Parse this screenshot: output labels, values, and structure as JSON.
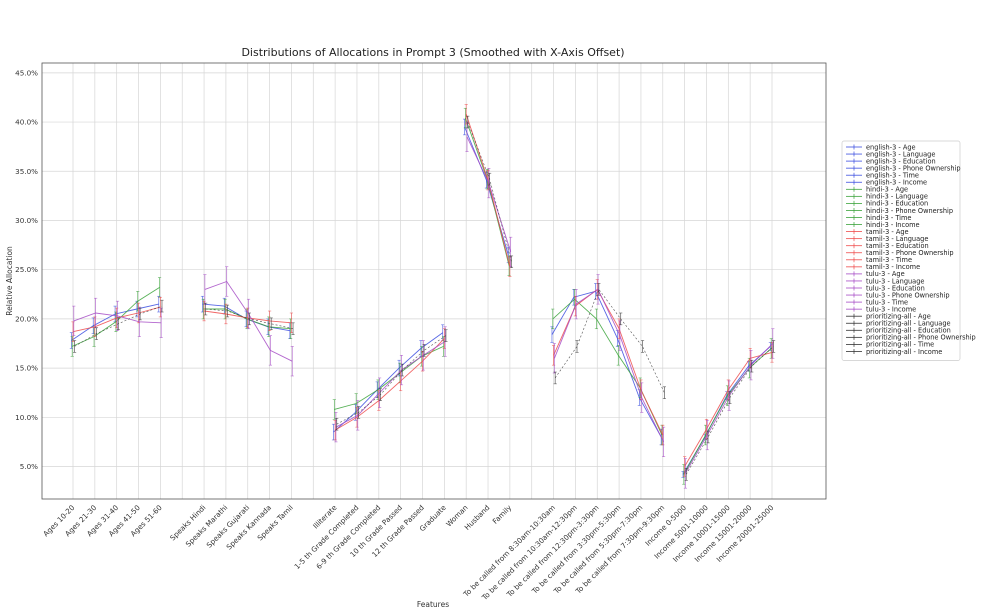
{
  "chart_data": {
    "type": "line",
    "title": "Distributions of Allocations in Prompt 3 (Smoothed with X-Axis Offset)",
    "xlabel": "Features",
    "ylabel": "Relative Allocation",
    "ylim": [
      0.017,
      0.46
    ],
    "y_ticks": [
      "5.0%",
      "10.0%",
      "15.0%",
      "20.0%",
      "25.0%",
      "30.0%",
      "35.0%",
      "40.0%",
      "45.0%"
    ],
    "y_tick_values": [
      0.05,
      0.1,
      0.15,
      0.2,
      0.25,
      0.3,
      0.35,
      0.4,
      0.45
    ],
    "grid": true,
    "legend_position": "right-outside",
    "categories": [
      "Ages 10-20",
      "Ages 21-30",
      "Ages 31-40",
      "Ages 41-50",
      "Ages 51-60",
      "",
      "Speaks Hindi",
      "Speaks Marathi",
      "Speaks Gujarati",
      "Speaks Kannada",
      "Speaks Tamil",
      "",
      "Illiterate",
      "1-5 th Grade Completed",
      "6-9 th Grade Completed",
      "10 th Grade Passed",
      "12 th Grade Passed",
      "Graduate",
      "Woman",
      "Husband",
      "Family",
      "",
      "To be called from 8:30am-10:30am",
      "To be called from 10:30am-12:30pm",
      "To be called from 12:30pm-3:30pm",
      "To be called from 3:30pm-5:30pm",
      "To be called from 5:30pm-7:30pm",
      "To be called from 7:30pm-9:30pm",
      "Income 0-5000",
      "Income 5001-10000",
      "Income 10001-15000",
      "Income 15001-20000",
      "Income 20001-25000"
    ],
    "groups": [
      {
        "name": "Age",
        "categories": [
          "Ages 10-20",
          "Ages 21-30",
          "Ages 31-40",
          "Ages 41-50",
          "Ages 51-60"
        ]
      },
      {
        "name": "Language",
        "categories": [
          "Speaks Hindi",
          "Speaks Marathi",
          "Speaks Gujarati",
          "Speaks Kannada",
          "Speaks Tamil"
        ]
      },
      {
        "name": "Education",
        "categories": [
          "Illiterate",
          "1-5 th Grade Completed",
          "6-9 th Grade Completed",
          "10 th Grade Passed",
          "12 th Grade Passed",
          "Graduate"
        ]
      },
      {
        "name": "Phone Ownership",
        "categories": [
          "Woman",
          "Husband",
          "Family"
        ]
      },
      {
        "name": "Time",
        "categories": [
          "To be called from 8:30am-10:30am",
          "To be called from 10:30am-12:30pm",
          "To be called from 12:30pm-3:30pm",
          "To be called from 3:30pm-5:30pm",
          "To be called from 5:30pm-7:30pm",
          "To be called from 7:30pm-9:30pm"
        ]
      },
      {
        "name": "Income",
        "categories": [
          "Income 0-5000",
          "Income 5001-10000",
          "Income 10001-15000",
          "Income 15001-20000",
          "Income 20001-25000"
        ]
      }
    ],
    "models": [
      {
        "name": "english-3",
        "color": "#3b4ee0",
        "Age": [
          0.178,
          0.193,
          0.205,
          0.21,
          0.215
        ],
        "Language": [
          0.215,
          0.213,
          0.2,
          0.192,
          0.188
        ],
        "Education": [
          0.085,
          0.105,
          0.128,
          0.15,
          0.17,
          0.186
        ],
        "Phone Ownership": [
          0.395,
          0.341,
          0.265
        ],
        "Time": [
          0.184,
          0.222,
          0.228,
          0.18,
          0.12,
          0.08
        ],
        "Income": [
          0.042,
          0.08,
          0.122,
          0.152,
          0.172
        ],
        "Income_errors": [
          0.003,
          0.003,
          0.004,
          0.005,
          0.004
        ],
        "errors": 0.008
      },
      {
        "name": "hindi-3",
        "color": "#3aa33a",
        "Age": [
          0.172,
          0.182,
          0.197,
          0.218,
          0.232
        ],
        "Language": [
          0.21,
          0.21,
          0.2,
          0.192,
          0.19
        ],
        "Education": [
          0.108,
          0.114,
          0.128,
          0.145,
          0.162,
          0.172
        ],
        "Phone Ownership": [
          0.404,
          0.342,
          0.254
        ],
        "Time": [
          0.2,
          0.22,
          0.2,
          0.163,
          0.13,
          0.082
        ],
        "Income": [
          0.042,
          0.082,
          0.122,
          0.15,
          0.17
        ],
        "errors": 0.01
      },
      {
        "name": "tamil-3",
        "color": "#ef4b4b",
        "Age": [
          0.187,
          0.192,
          0.201,
          0.206,
          0.212
        ],
        "Language": [
          0.208,
          0.205,
          0.201,
          0.198,
          0.196
        ],
        "Education": [
          0.087,
          0.1,
          0.117,
          0.137,
          0.157,
          0.18
        ],
        "Phone Ownership": [
          0.408,
          0.341,
          0.253
        ],
        "Time": [
          0.163,
          0.213,
          0.23,
          0.19,
          0.128,
          0.082
        ],
        "Income": [
          0.05,
          0.088,
          0.128,
          0.16,
          0.166
        ],
        "errors": 0.01
      },
      {
        "name": "tulu-3",
        "color": "#a64bc6",
        "Age": [
          0.198,
          0.206,
          0.203,
          0.197,
          0.196
        ],
        "Language": [
          0.23,
          0.238,
          0.205,
          0.168,
          0.157
        ],
        "Education": [
          0.09,
          0.102,
          0.125,
          0.148,
          0.163,
          0.177
        ],
        "Phone Ownership": [
          0.385,
          0.338,
          0.268
        ],
        "Time": [
          0.16,
          0.215,
          0.23,
          0.183,
          0.12,
          0.075
        ],
        "Income": [
          0.043,
          0.082,
          0.122,
          0.153,
          0.175
        ],
        "errors": 0.015
      },
      {
        "name": "prioritizing-all",
        "color": "#333333",
        "Age": [
          0.172,
          0.185,
          0.195,
          0.205,
          0.213
        ],
        "Language": [
          0.21,
          0.208,
          0.2,
          0.195,
          0.19
        ],
        "Education": [
          0.093,
          0.105,
          0.123,
          0.148,
          0.168,
          0.183
        ],
        "Phone Ownership": [
          0.4,
          0.342,
          0.258
        ],
        "Time": [
          0.14,
          0.172,
          0.23,
          0.2,
          0.172,
          0.125
        ],
        "Income": [
          0.042,
          0.08,
          0.12,
          0.152,
          0.172
        ],
        "errors": 0.006
      }
    ],
    "legend": [
      "english-3 - Age",
      "english-3 - Language",
      "english-3 - Education",
      "english-3 - Phone Ownership",
      "english-3 - Time",
      "english-3 - Income",
      "hindi-3 - Age",
      "hindi-3 - Language",
      "hindi-3 - Education",
      "hindi-3 - Phone Ownership",
      "hindi-3 - Time",
      "hindi-3 - Income",
      "tamil-3 - Age",
      "tamil-3 - Language",
      "tamil-3 - Education",
      "tamil-3 - Phone Ownership",
      "tamil-3 - Time",
      "tamil-3 - Income",
      "tulu-3 - Age",
      "tulu-3 - Language",
      "tulu-3 - Education",
      "tulu-3 - Phone Ownership",
      "tulu-3 - Time",
      "tulu-3 - Income",
      "prioritizing-all - Age",
      "prioritizing-all - Language",
      "prioritizing-all - Education",
      "prioritizing-all - Phone Ownership",
      "prioritizing-all - Time",
      "prioritizing-all - Income"
    ]
  }
}
